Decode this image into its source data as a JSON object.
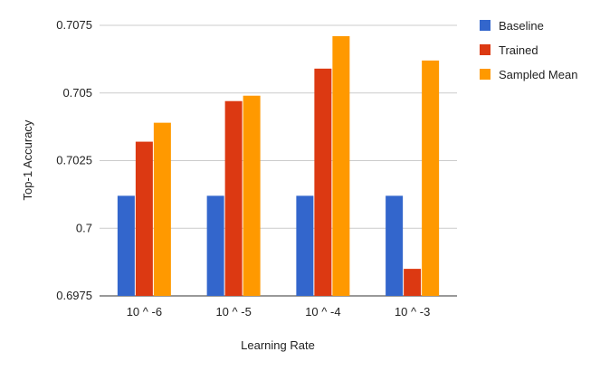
{
  "chart_data": {
    "type": "bar",
    "title": "",
    "xlabel": "Learning Rate",
    "ylabel": "Top-1 Accuracy",
    "categories": [
      "10 ^ -6",
      "10 ^ -5",
      "10 ^ -4",
      "10 ^ -3"
    ],
    "ylim": [
      0.6975,
      0.7075
    ],
    "yticks": [
      0.6975,
      0.7,
      0.7025,
      0.705,
      0.7075
    ],
    "ytick_labels": [
      "0.6975",
      "0.7",
      "0.7025",
      "0.705",
      "0.7075"
    ],
    "grid": true,
    "legend_position": "right",
    "series": [
      {
        "name": "Baseline",
        "color": "#3366cc",
        "values": [
          0.7012,
          0.7012,
          0.7012,
          0.7012
        ]
      },
      {
        "name": "Trained",
        "color": "#dc3912",
        "values": [
          0.7032,
          0.7047,
          0.7059,
          0.6985
        ]
      },
      {
        "name": "Sampled Mean",
        "color": "#ff9900",
        "values": [
          0.7039,
          0.7049,
          0.7071,
          0.7062
        ]
      }
    ]
  }
}
